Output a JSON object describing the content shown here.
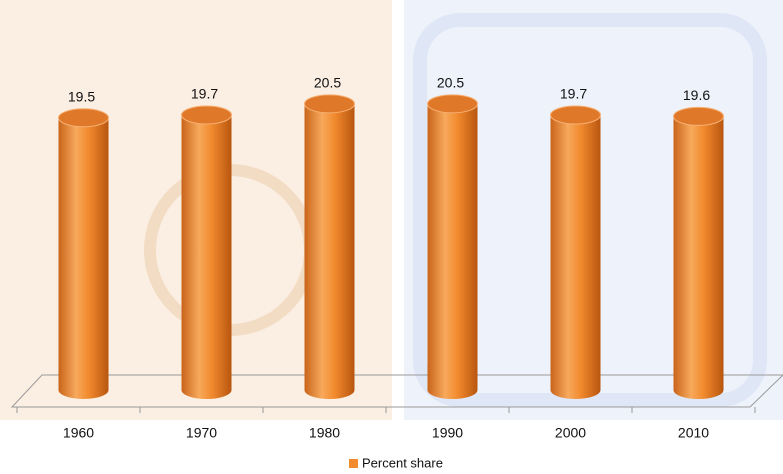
{
  "chart_data": {
    "type": "bar3d",
    "categories": [
      "1960",
      "1970",
      "1980",
      "1990",
      "2000",
      "2010"
    ],
    "series": [
      {
        "name": "Percent share",
        "color": "#f28a2e",
        "values": [
          19.5,
          19.7,
          20.5,
          20.5,
          19.7,
          19.6
        ]
      }
    ],
    "ylim": [
      0,
      25
    ],
    "legend": "bottom"
  }
}
